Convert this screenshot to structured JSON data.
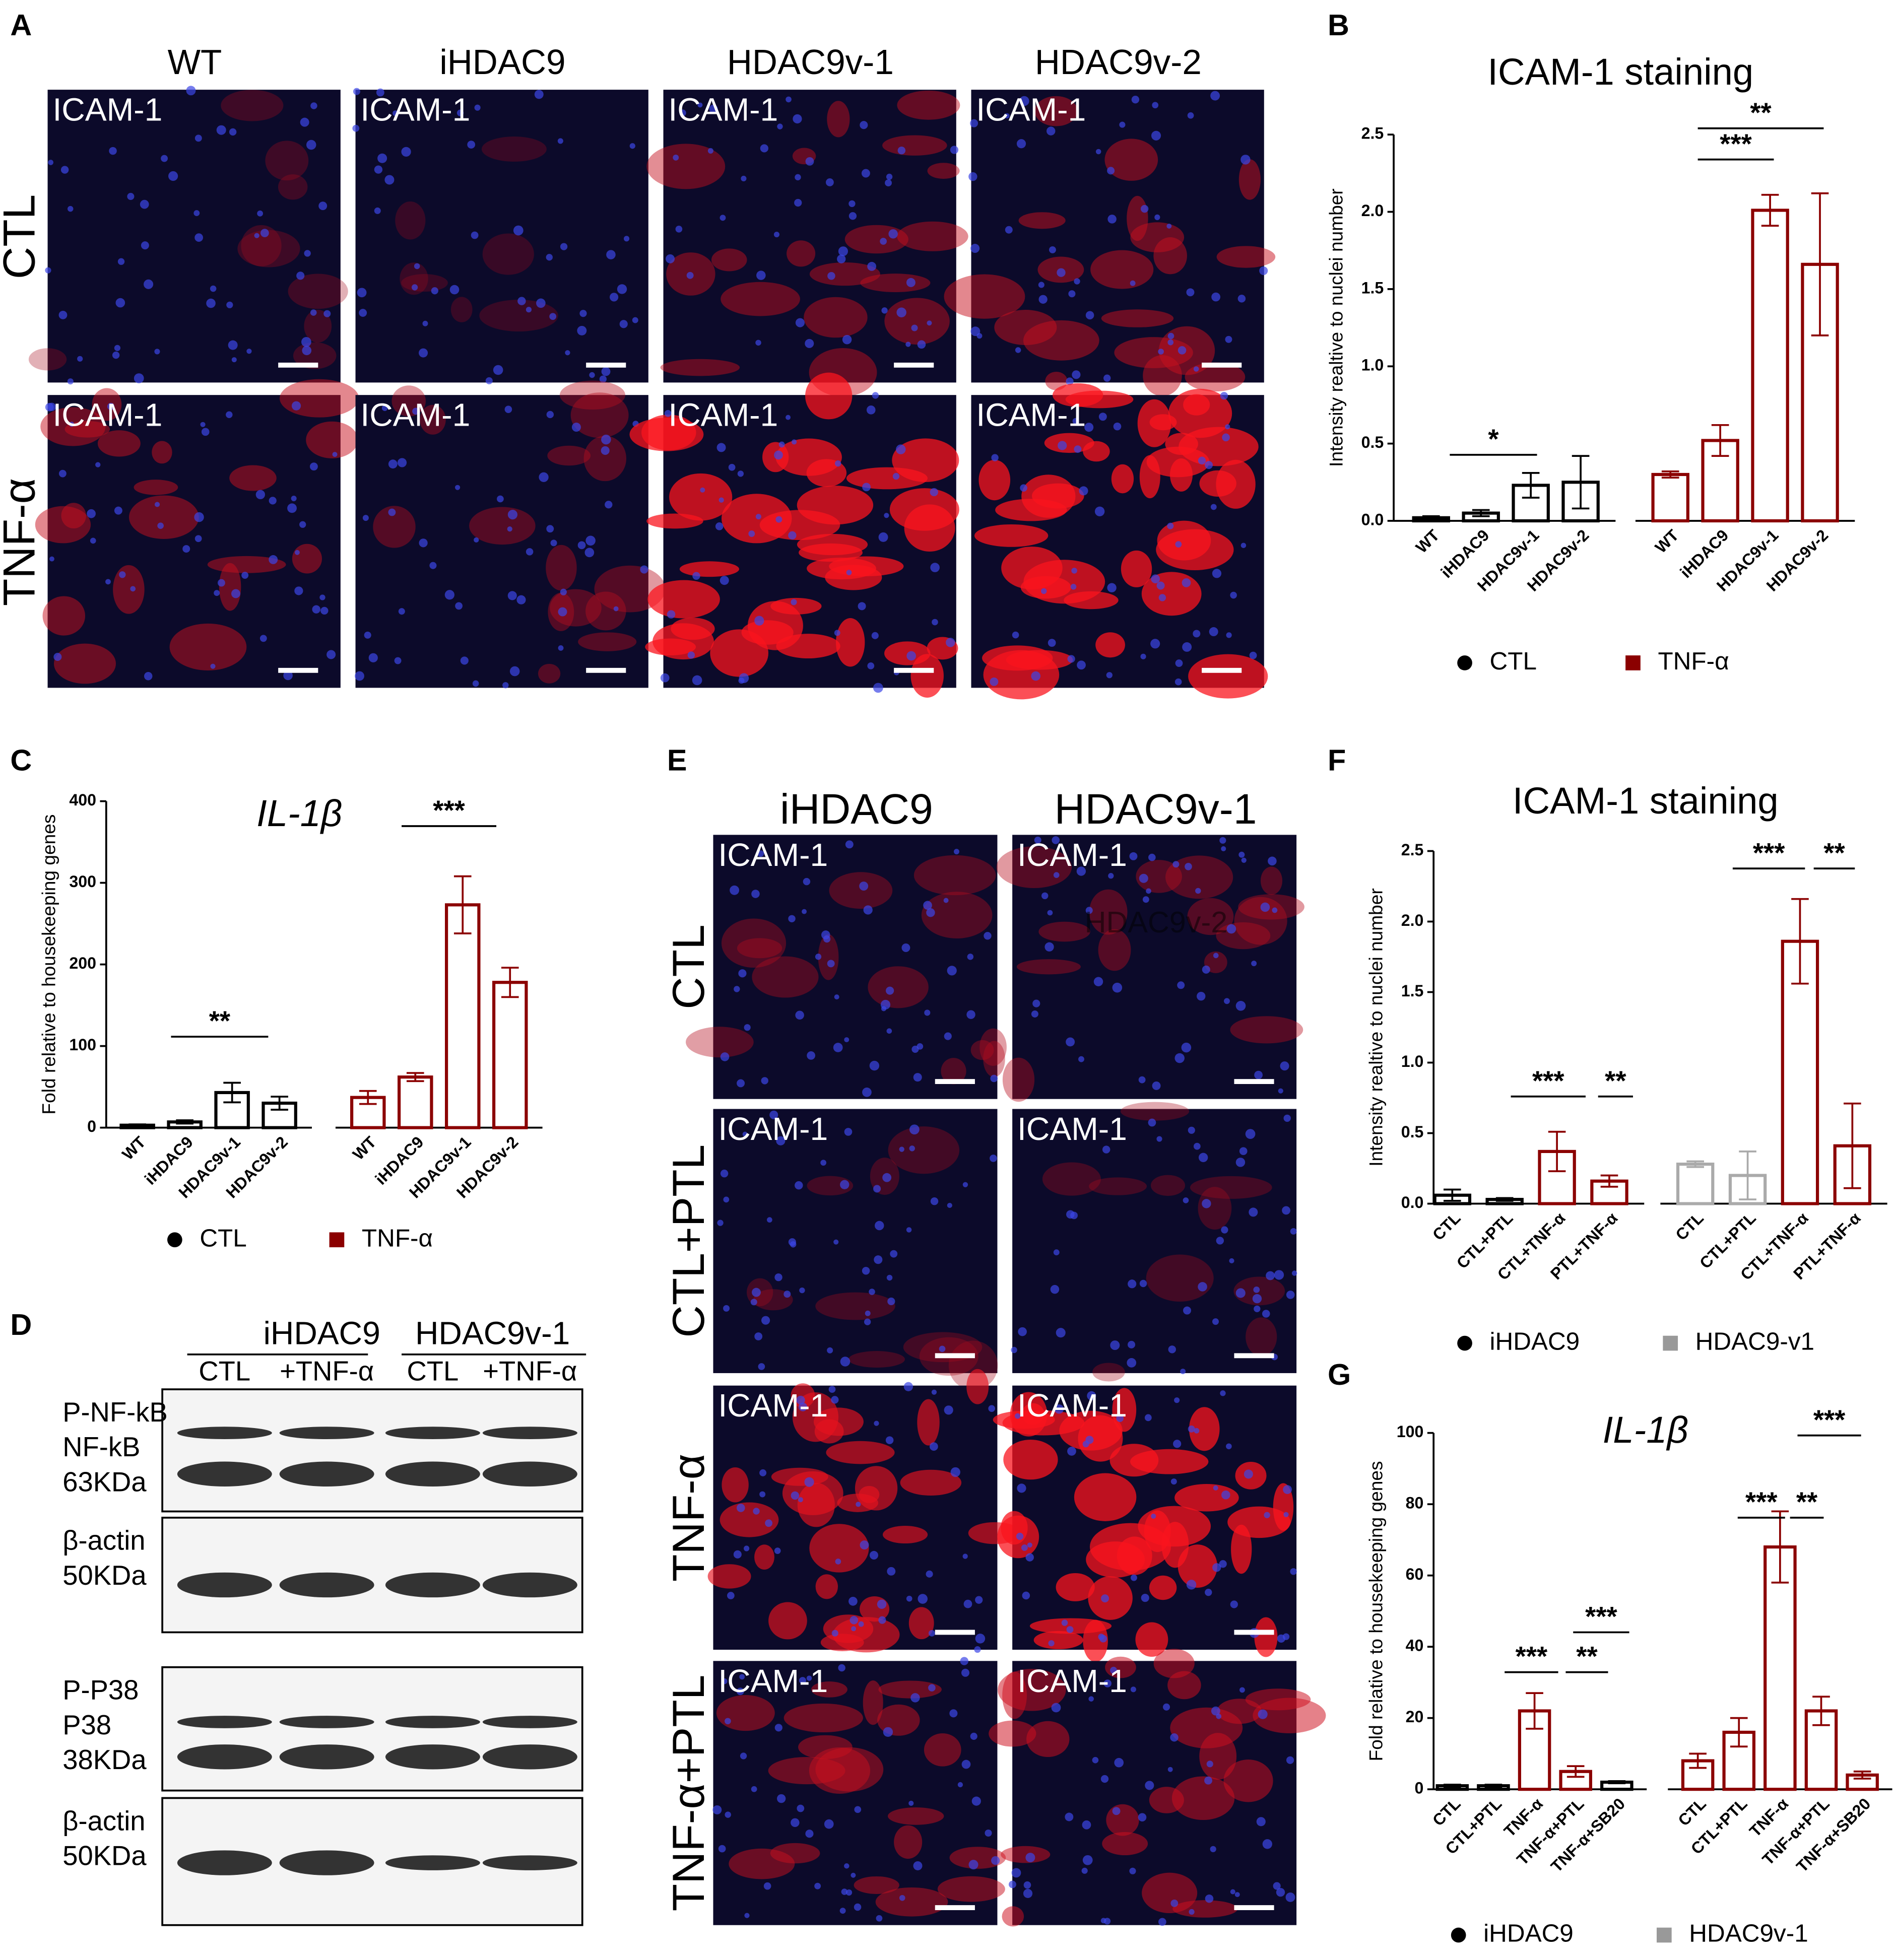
{
  "panel_labels": [
    "A",
    "B",
    "C",
    "D",
    "E",
    "F",
    "G"
  ],
  "panel_a": {
    "columns": [
      "WT",
      "iHDAC9",
      "HDAC9v-1",
      "HDAC9v-2"
    ],
    "rows": [
      "CTL",
      "TNF-α"
    ],
    "image_labels": [
      "ICAM-1",
      "ICAM-1",
      "ICAM-1",
      "ICAM-1",
      "ICAM-1",
      "ICAM-1",
      "ICAM-1",
      "ICAM-1"
    ]
  },
  "panel_d": {
    "groups": [
      "iHDAC9",
      "HDAC9v-1"
    ],
    "lanes": [
      "CTL",
      "+TNF-α",
      "CTL",
      "+TNF-α"
    ],
    "blots": [
      [
        "P-NF-kB",
        "NF-kB",
        "63KDa"
      ],
      [
        "β-actin",
        "50KDa"
      ],
      [
        "P-P38",
        "P38",
        "38KDa"
      ],
      [
        "β-actin",
        "50KDa"
      ]
    ]
  },
  "panel_e": {
    "columns": [
      "iHDAC9",
      "HDAC9v-1"
    ],
    "rows": [
      "CTL",
      "CTL+PTL",
      "TNF-α",
      "TNF-α+PTL"
    ],
    "image_labels": [
      "ICAM-1",
      "ICAM-1",
      "ICAM-1",
      "ICAM-1",
      "ICAM-1",
      "ICAM-1",
      "ICAM-1",
      "ICAM-1"
    ],
    "overlay": "HDAC9v-2"
  },
  "chart_data": [
    {
      "type": "bar",
      "title": "ICAM-1 staining",
      "ylabel": "Intensity realtive to nuclei number",
      "categories": [
        "WT",
        "iHDAC9",
        "HDAC9v-1",
        "HDAC9v-2",
        "WT",
        "iHDAC9",
        "HDAC9v-1",
        "HDAC9v-2"
      ],
      "series": [
        {
          "name": "CTL",
          "color": "#000000",
          "marker": "circle",
          "values": [
            0.02,
            0.05,
            0.23,
            0.25,
            null,
            null,
            null,
            null
          ],
          "errors": [
            0.01,
            0.02,
            0.08,
            0.17,
            null,
            null,
            null,
            null
          ],
          "edge_colors": [
            "#000000",
            "#000000",
            "#000000",
            "#000000",
            null,
            null,
            null,
            null
          ]
        },
        {
          "name": "TNF-α",
          "color": "#8b0000",
          "marker": "square",
          "values": [
            null,
            null,
            null,
            null,
            0.3,
            0.52,
            2.01,
            1.66
          ],
          "errors": [
            null,
            null,
            null,
            null,
            0.02,
            0.1,
            0.1,
            0.46
          ],
          "edge_colors": [
            null,
            null,
            null,
            null,
            "#8b0000",
            "#8b0000",
            "#8b0000",
            "#8b0000"
          ]
        }
      ],
      "ylim": [
        0,
        2.5
      ],
      "yticks": [
        {
          "value": 0,
          "label": "0.0"
        },
        0.5,
        {
          "value": 1,
          "label": "1.0"
        },
        1.5,
        {
          "value": 2,
          "label": "2.0"
        },
        2.5
      ],
      "annotations": [
        "*",
        "***",
        "**"
      ]
    },
    {
      "type": "bar",
      "title": "IL-1β",
      "ylabel": "Fold relative to housekeeping genes",
      "categories": [
        "WT",
        "iHDAC9",
        "HDAC9v-1",
        "HDAC9v-2",
        "WT",
        "iHDAC9",
        "HDAC9v-1",
        "HDAC9v-2"
      ],
      "series": [
        {
          "name": "CTL",
          "color": "#000000",
          "marker": "circle",
          "values": [
            3,
            7,
            43,
            30,
            null,
            null,
            null,
            null
          ],
          "errors": [
            1,
            2,
            12,
            8,
            null,
            null,
            null,
            null
          ],
          "edge_colors": [
            "#000000",
            "#000000",
            "#000000",
            "#000000",
            null,
            null,
            null,
            null
          ]
        },
        {
          "name": "TNF-α",
          "color": "#8b0000",
          "marker": "square",
          "values": [
            null,
            null,
            null,
            null,
            37,
            62,
            273,
            178
          ],
          "errors": [
            null,
            null,
            null,
            null,
            8,
            5,
            35,
            18
          ],
          "edge_colors": [
            null,
            null,
            null,
            null,
            "#8b0000",
            "#8b0000",
            "#8b0000",
            "#8b0000"
          ]
        }
      ],
      "ylim": [
        0,
        400
      ],
      "yticks": [
        0,
        100,
        200,
        300,
        400
      ],
      "annotations": [
        "**",
        "***"
      ]
    },
    {
      "type": "bar",
      "title": "ICAM-1 staining",
      "ylabel": "Intensity realtive to nuclei number",
      "categories": [
        "CTL",
        "CTL+PTL",
        "CTL+TNF-α",
        "PTL+TNF-α",
        "CTL",
        "CTL+PTL",
        "CTL+TNF-α",
        "PTL+TNF-α"
      ],
      "series": [
        {
          "name": "iHDAC9",
          "color": "#000000",
          "marker": "circle",
          "values": [
            0.06,
            0.03,
            0.37,
            0.16,
            null,
            null,
            null,
            null
          ],
          "errors": [
            0.04,
            0.01,
            0.14,
            0.04,
            null,
            null,
            null,
            null
          ],
          "edge_colors": [
            "#000000",
            "#000000",
            "#8b0000",
            "#8b0000",
            null,
            null,
            null,
            null
          ]
        },
        {
          "name": "HDAC9-v1",
          "color": "#999999",
          "marker": "square",
          "values": [
            null,
            null,
            null,
            null,
            0.28,
            0.2,
            1.86,
            0.41
          ],
          "errors": [
            null,
            null,
            null,
            null,
            0.02,
            0.17,
            0.3,
            0.3
          ],
          "edge_colors": [
            null,
            null,
            null,
            null,
            "#aaaaaa",
            "#aaaaaa",
            "#8b0000",
            "#8b0000"
          ]
        }
      ],
      "ylim": [
        0,
        2.5
      ],
      "yticks": [
        {
          "value": 0,
          "label": "0.0"
        },
        0.5,
        {
          "value": 1,
          "label": "1.0"
        },
        1.5,
        {
          "value": 2,
          "label": "2.0"
        },
        2.5
      ],
      "annotations": [
        "***",
        "**",
        "***",
        "**"
      ]
    },
    {
      "type": "bar",
      "title": "IL-1β",
      "ylabel": "Fold relative to housekeeping genes",
      "categories": [
        "CTL",
        "CTL+PTL",
        "TNF-α",
        "TNF-α+PTL",
        "TNF-α+SB20",
        "CTL",
        "CTL+PTL",
        "TNF-α",
        "TNF-α+PTL",
        "TNF-α+SB20"
      ],
      "series": [
        {
          "name": "iHDAC9",
          "color": "#000000",
          "marker": "circle",
          "values": [
            1,
            1,
            22,
            5,
            2,
            null,
            null,
            null,
            null,
            null
          ],
          "errors": [
            0.3,
            0.3,
            5,
            1.5,
            0.3,
            null,
            null,
            null,
            null,
            null
          ],
          "edge_colors": [
            "#000000",
            "#000000",
            "#8b0000",
            "#8b0000",
            "#000000",
            null,
            null,
            null,
            null,
            null
          ]
        },
        {
          "name": "HDAC9v-1",
          "color": "#999999",
          "marker": "square",
          "values": [
            null,
            null,
            null,
            null,
            null,
            8,
            16,
            68,
            22,
            4
          ],
          "errors": [
            null,
            null,
            null,
            null,
            null,
            2,
            4,
            10,
            4,
            1
          ],
          "edge_colors": [
            null,
            null,
            null,
            null,
            null,
            "#8b0000",
            "#8b0000",
            "#8b0000",
            "#8b0000",
            "#8b0000"
          ]
        }
      ],
      "ylim": [
        0,
        100
      ],
      "yticks": [
        0,
        20,
        40,
        60,
        80,
        100
      ],
      "annotations": [
        "***",
        "**",
        "***",
        "***",
        "**",
        "***"
      ]
    }
  ]
}
